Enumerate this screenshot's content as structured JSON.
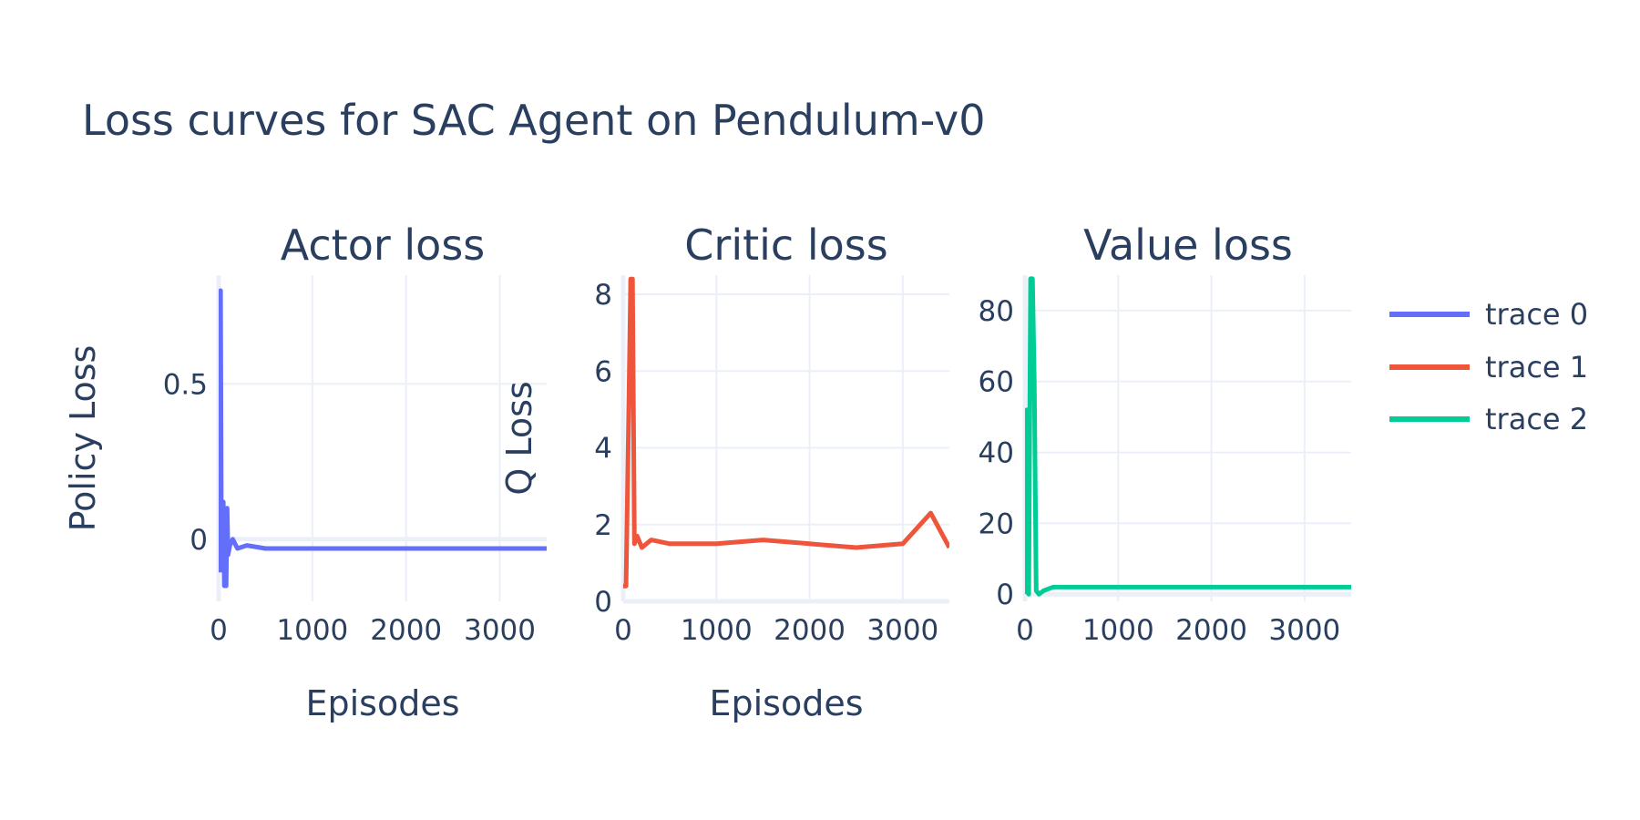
{
  "title": "Loss curves for SAC Agent on Pendulum-v0",
  "colors": {
    "trace0": "#636efa",
    "trace1": "#ef553b",
    "trace2": "#00cc96",
    "grid": "#ebf0f8",
    "text": "#2a3f5f"
  },
  "chart_data": [
    {
      "type": "line",
      "title": "Actor loss",
      "xlabel": "Episodes",
      "ylabel": "Policy Loss",
      "xlim": [
        0,
        3500
      ],
      "ylim": [
        -0.2,
        0.85
      ],
      "xticks": [
        0,
        1000,
        2000,
        3000
      ],
      "xtick_labels": [
        "0",
        "1000",
        "2000",
        "3000"
      ],
      "yticks": [
        0,
        0.5
      ],
      "ytick_labels": [
        "0",
        "0.5"
      ],
      "grid": true,
      "series": [
        {
          "name": "trace 0",
          "color": "#636efa",
          "x": [
            0,
            10,
            20,
            30,
            40,
            50,
            60,
            70,
            80,
            90,
            100,
            120,
            150,
            200,
            300,
            500,
            700,
            1000,
            1300,
            1600,
            2000,
            2400,
            2800,
            3200,
            3500
          ],
          "y": [
            0.8,
            -0.1,
            0.8,
            -0.1,
            0.0,
            0.12,
            -0.15,
            -0.1,
            -0.15,
            0.1,
            -0.05,
            -0.02,
            0.0,
            -0.03,
            -0.02,
            -0.03,
            -0.03,
            -0.03,
            -0.03,
            -0.03,
            -0.03,
            -0.03,
            -0.03,
            -0.03,
            -0.03
          ]
        }
      ]
    },
    {
      "type": "line",
      "title": "Critic loss",
      "xlabel": "Episodes",
      "ylabel": "Q Loss",
      "xlim": [
        0,
        3500
      ],
      "ylim": [
        0,
        8.5
      ],
      "xticks": [
        0,
        1000,
        2000,
        3000
      ],
      "xtick_labels": [
        "0",
        "1000",
        "2000",
        "3000"
      ],
      "yticks": [
        0,
        2,
        4,
        6,
        8
      ],
      "ytick_labels": [
        "0",
        "2",
        "4",
        "6",
        "8"
      ],
      "grid": true,
      "series": [
        {
          "name": "trace 1",
          "color": "#ef553b",
          "x": [
            0,
            30,
            60,
            80,
            100,
            120,
            150,
            200,
            300,
            500,
            1000,
            1500,
            2000,
            2500,
            3000,
            3300,
            3500
          ],
          "y": [
            0.4,
            0.4,
            5.0,
            8.4,
            8.4,
            1.5,
            1.7,
            1.4,
            1.6,
            1.5,
            1.5,
            1.6,
            1.5,
            1.4,
            1.5,
            2.3,
            1.4
          ]
        }
      ]
    },
    {
      "type": "line",
      "title": "Value loss",
      "xlabel": "",
      "ylabel": "",
      "xlim": [
        0,
        3500
      ],
      "ylim": [
        -2,
        90
      ],
      "xticks": [
        0,
        1000,
        2000,
        3000
      ],
      "xtick_labels": [
        "0",
        "1000",
        "2000",
        "3000"
      ],
      "yticks": [
        0,
        20,
        40,
        60,
        80
      ],
      "ytick_labels": [
        "0",
        "20",
        "40",
        "60",
        "80"
      ],
      "grid": true,
      "series": [
        {
          "name": "trace 2",
          "color": "#00cc96",
          "x": [
            0,
            20,
            40,
            60,
            80,
            100,
            120,
            150,
            200,
            300,
            500,
            1000,
            1500,
            2000,
            2500,
            3000,
            3500
          ],
          "y": [
            0,
            52,
            0,
            89,
            89,
            60,
            1,
            0,
            1,
            2,
            2,
            2,
            2,
            2,
            2,
            2,
            2
          ]
        }
      ]
    }
  ],
  "legend": {
    "placement": "right",
    "items": [
      {
        "label": "trace 0",
        "color": "#636efa"
      },
      {
        "label": "trace 1",
        "color": "#ef553b"
      },
      {
        "label": "trace 2",
        "color": "#00cc96"
      }
    ]
  }
}
